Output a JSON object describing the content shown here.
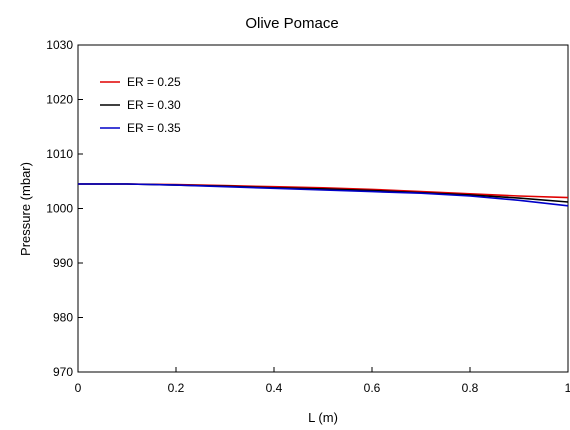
{
  "chart_data": {
    "type": "line",
    "title": "Olive Pomace",
    "xlabel": "L (m)",
    "ylabel": "Pressure (mbar)",
    "xlim": [
      0,
      1
    ],
    "ylim": [
      970,
      1030
    ],
    "xticks": [
      0,
      0.2,
      0.4,
      0.6,
      0.8,
      1
    ],
    "xtick_labels": [
      "0",
      "0.2",
      "0.4",
      "0.6",
      "0.8",
      "1"
    ],
    "yticks": [
      970,
      980,
      990,
      1000,
      1010,
      1020,
      1030
    ],
    "ytick_labels": [
      "970",
      "980",
      "990",
      "1000",
      "1010",
      "1020",
      "1030"
    ],
    "grid": false,
    "legend_position": "top-left",
    "x": [
      0,
      0.1,
      0.2,
      0.3,
      0.4,
      0.5,
      0.6,
      0.7,
      0.8,
      0.9,
      1.0
    ],
    "series": [
      {
        "name": "ER = 0.25",
        "color": "#e00000",
        "values": [
          1004.5,
          1004.5,
          1004.4,
          1004.2,
          1004.0,
          1003.8,
          1003.5,
          1003.1,
          1002.7,
          1002.3,
          1002.0
        ]
      },
      {
        "name": "ER = 0.30",
        "color": "#000000",
        "values": [
          1004.5,
          1004.5,
          1004.3,
          1004.1,
          1003.8,
          1003.6,
          1003.3,
          1002.9,
          1002.5,
          1001.9,
          1001.2
        ]
      },
      {
        "name": "ER = 0.35",
        "color": "#0000c8",
        "values": [
          1004.5,
          1004.5,
          1004.3,
          1004.0,
          1003.7,
          1003.4,
          1003.1,
          1002.8,
          1002.3,
          1001.5,
          1000.5
        ]
      }
    ]
  }
}
